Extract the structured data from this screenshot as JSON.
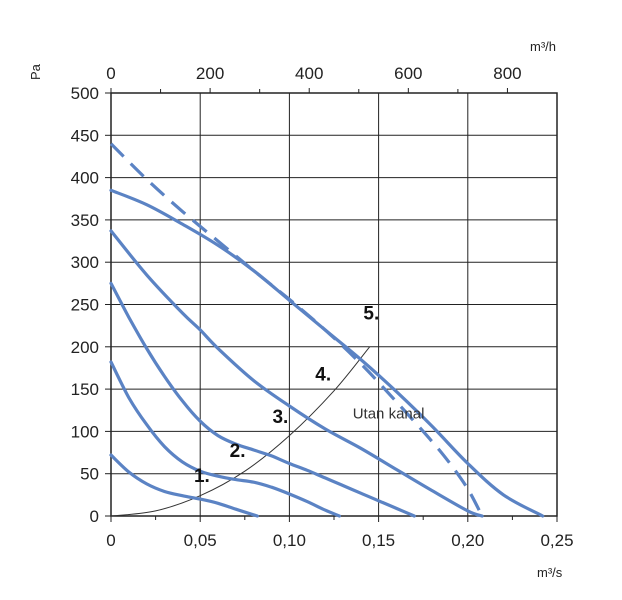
{
  "chart_data": {
    "type": "line",
    "title": "",
    "xlabel": "m³/s",
    "ylabel": "Pa",
    "x2label": "m³/h",
    "xlim": [
      0,
      0.25
    ],
    "ylim": [
      0,
      500
    ],
    "x2lim": [
      0,
      900
    ],
    "grid": true,
    "legend": "none",
    "x_ticks": [
      "0",
      "0,05",
      "0,10",
      "0,15",
      "0,20",
      "0,25"
    ],
    "x_tick_values": [
      0,
      0.05,
      0.1,
      0.15,
      0.2,
      0.25
    ],
    "x2_ticks": [
      "0",
      "200",
      "400",
      "600",
      "800"
    ],
    "x2_tick_values": [
      0,
      200,
      400,
      600,
      800
    ],
    "y_ticks": [
      "0",
      "50",
      "100",
      "150",
      "200",
      "250",
      "300",
      "350",
      "400",
      "450",
      "500"
    ],
    "y_tick_values": [
      0,
      50,
      100,
      150,
      200,
      250,
      300,
      350,
      400,
      450,
      500
    ],
    "colors": {
      "curve": "#5b83c4",
      "grid": "#222222",
      "system": "#333333"
    },
    "series": [
      {
        "name": "1.",
        "style": "solid",
        "label_at": [
          0.0465,
          40
        ],
        "x": [
          0,
          0.01,
          0.02,
          0.03,
          0.04,
          0.05,
          0.06,
          0.07,
          0.082
        ],
        "y": [
          72,
          52,
          38,
          29,
          24,
          20,
          15,
          8,
          0
        ]
      },
      {
        "name": "2.",
        "style": "solid",
        "label_at": [
          0.0665,
          70
        ],
        "x": [
          0,
          0.01,
          0.02,
          0.03,
          0.04,
          0.05,
          0.06,
          0.07,
          0.08,
          0.09,
          0.1,
          0.11,
          0.12,
          0.128
        ],
        "y": [
          182,
          140,
          108,
          82,
          64,
          53,
          47,
          43,
          40,
          34,
          26,
          17,
          7,
          0
        ]
      },
      {
        "name": "3.",
        "style": "solid",
        "label_at": [
          0.0905,
          110
        ],
        "x": [
          0,
          0.01,
          0.02,
          0.03,
          0.04,
          0.05,
          0.06,
          0.07,
          0.08,
          0.09,
          0.1,
          0.11,
          0.12,
          0.13,
          0.14,
          0.15,
          0.16,
          0.17
        ],
        "y": [
          275,
          235,
          198,
          165,
          136,
          112,
          95,
          85,
          78,
          71,
          62,
          54,
          45,
          36,
          27,
          18,
          9,
          0
        ]
      },
      {
        "name": "4.",
        "style": "solid",
        "label_at": [
          0.1145,
          160
        ],
        "x": [
          0,
          0.02,
          0.04,
          0.05,
          0.06,
          0.08,
          0.1,
          0.12,
          0.14,
          0.16,
          0.18,
          0.2,
          0.208
        ],
        "y": [
          337,
          285,
          240,
          220,
          198,
          160,
          130,
          103,
          80,
          55,
          30,
          6,
          0
        ]
      },
      {
        "name": "5.",
        "style": "solid",
        "label_at": [
          0.1415,
          232
        ],
        "x": [
          0,
          0.02,
          0.04,
          0.06,
          0.08,
          0.1,
          0.12,
          0.14,
          0.16,
          0.18,
          0.2,
          0.22,
          0.242
        ],
        "y": [
          385,
          368,
          345,
          320,
          290,
          255,
          220,
          185,
          147,
          106,
          62,
          25,
          0
        ]
      },
      {
        "name": "",
        "style": "dashed",
        "x": [
          0,
          0.02,
          0.04,
          0.06,
          0.08,
          0.1,
          0.12,
          0.14,
          0.16,
          0.18,
          0.19,
          0.2,
          0.208
        ],
        "y": [
          440,
          398,
          360,
          325,
          290,
          256,
          220,
          180,
          135,
          88,
          62,
          32,
          0
        ]
      }
    ],
    "system_curve": {
      "label": "Utan kanal",
      "label_at": [
        0.1355,
        115
      ],
      "x": [
        0,
        0.025,
        0.05,
        0.075,
        0.1,
        0.125,
        0.145
      ],
      "y": [
        0,
        6,
        24,
        53,
        95,
        148,
        200
      ]
    }
  }
}
